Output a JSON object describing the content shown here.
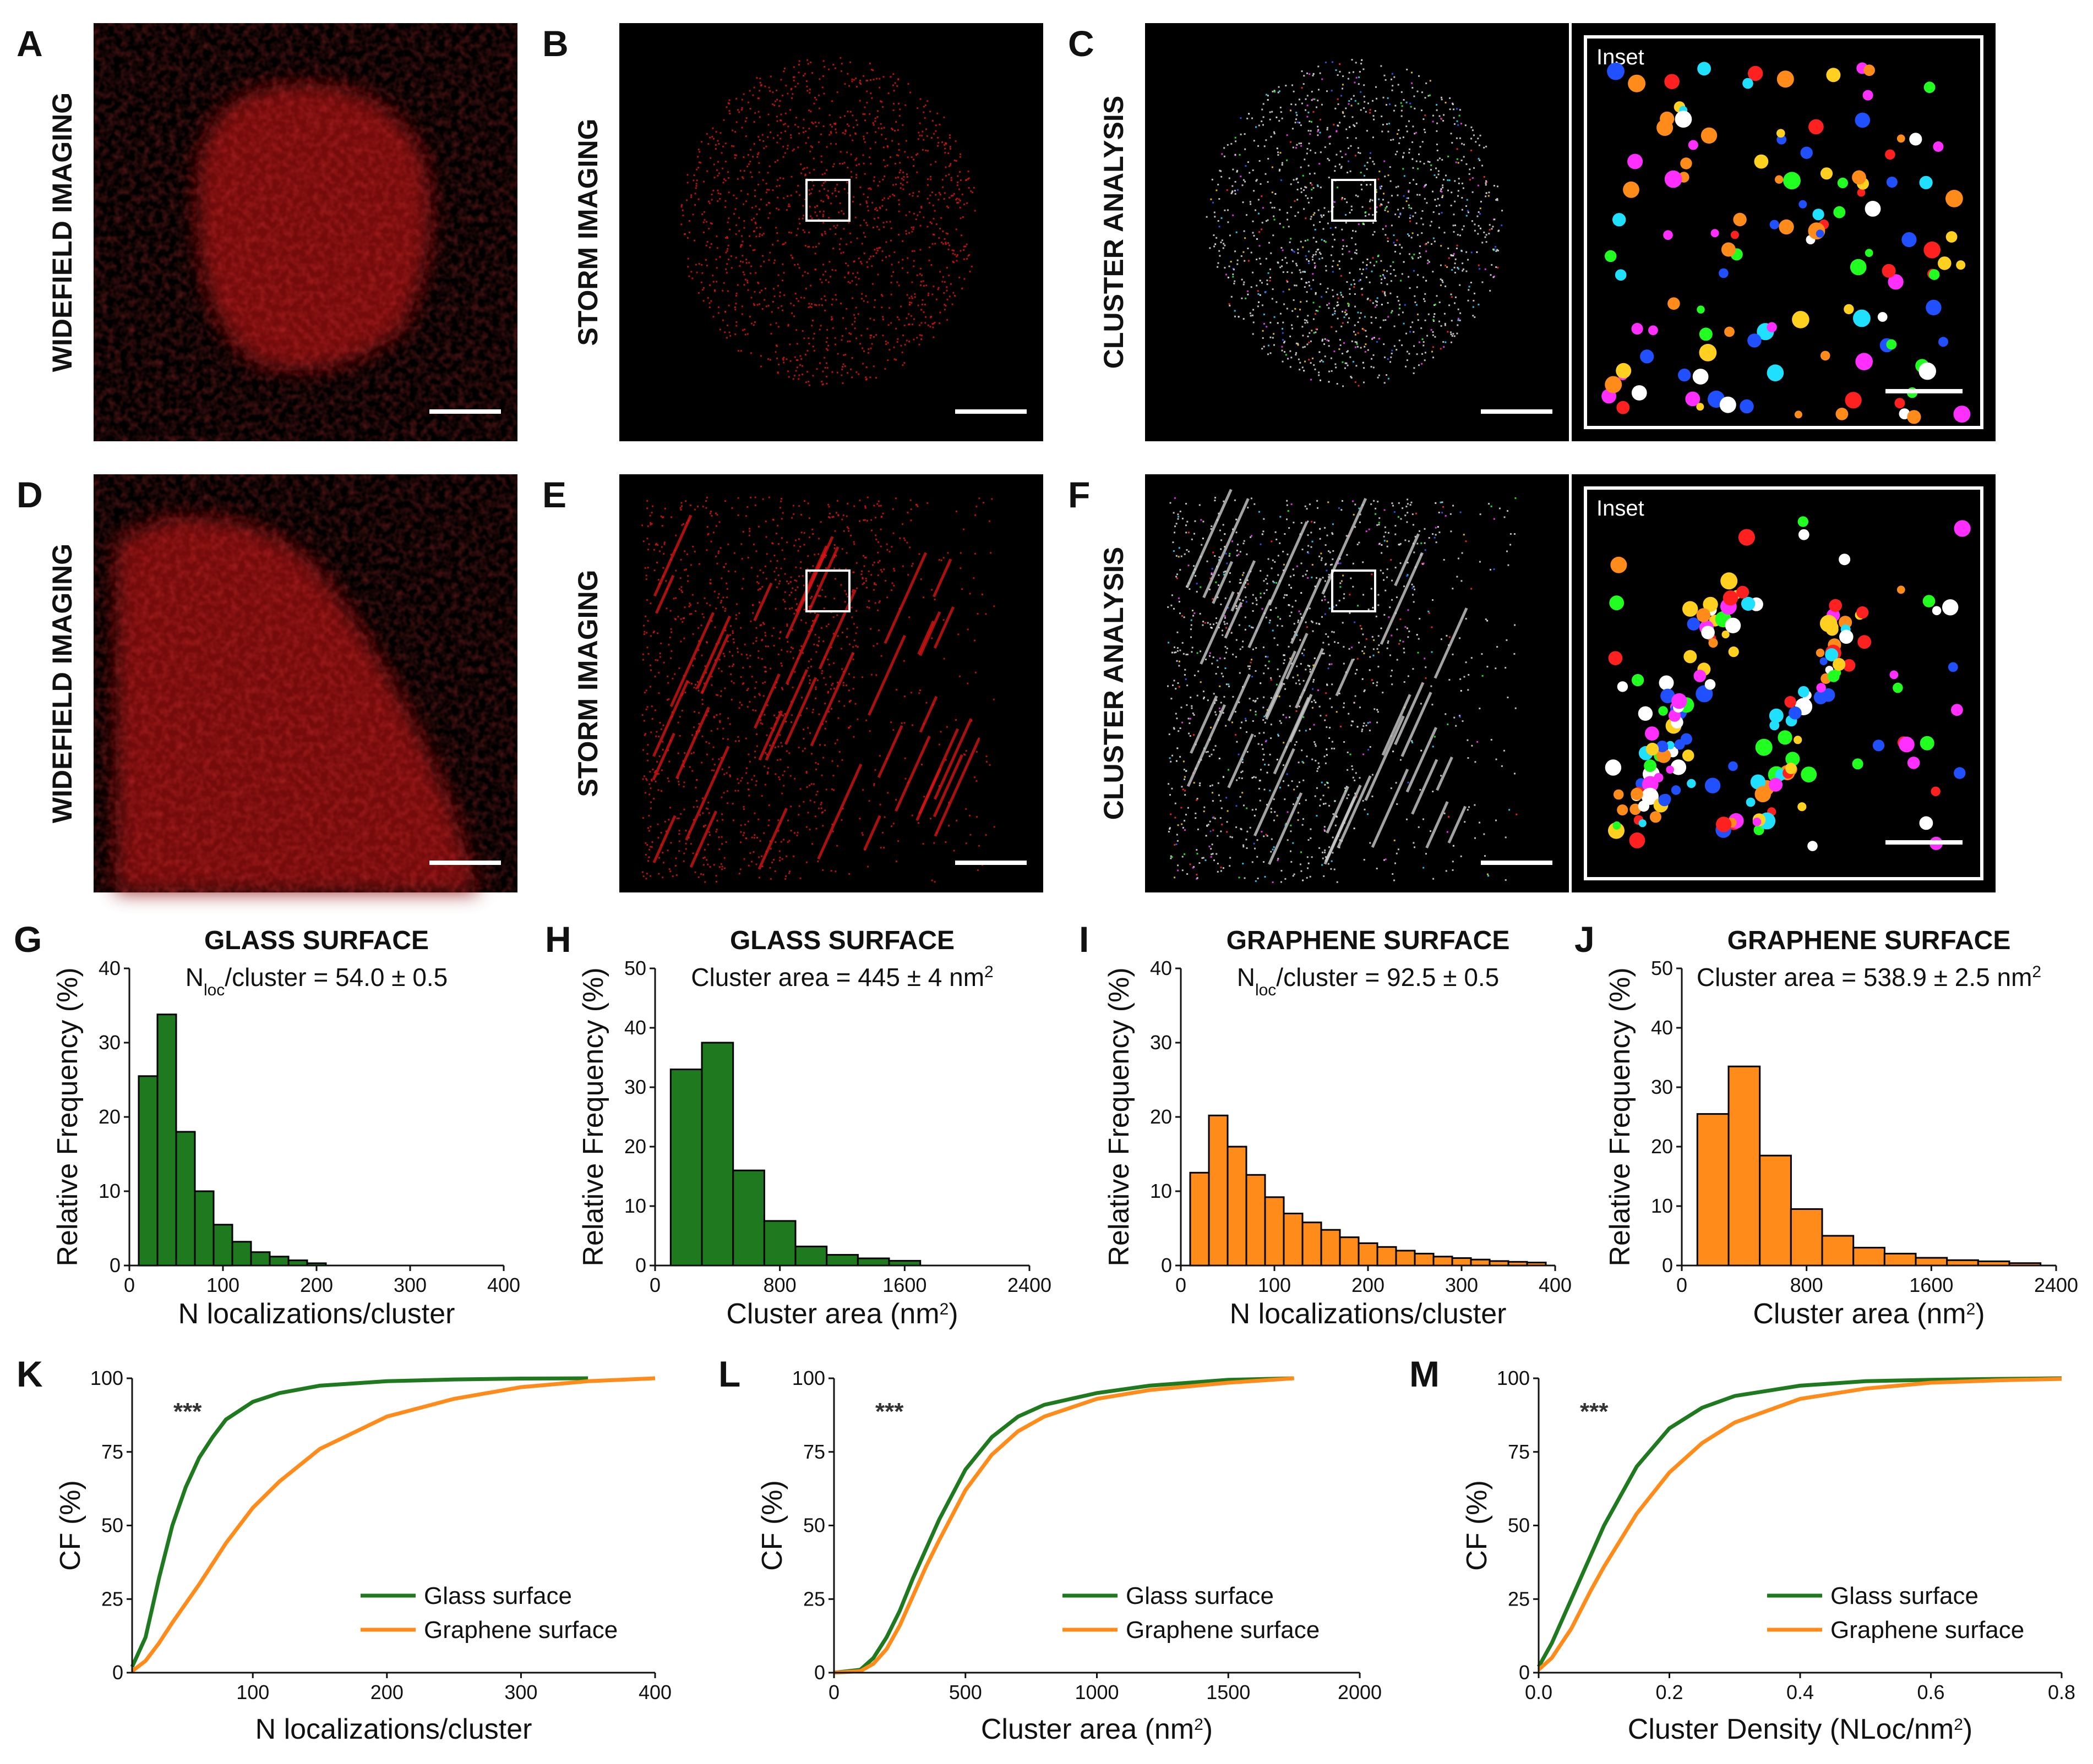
{
  "colors": {
    "glass": "#1f7a1f",
    "graphene": "#ff8c1a",
    "micro_red": "#d41414"
  },
  "panels": {
    "A": {
      "letter": "A",
      "title": "WIDEFIELD IMAGING",
      "type": "widefield"
    },
    "B": {
      "letter": "B",
      "title": "STORM IMAGING",
      "type": "storm"
    },
    "C": {
      "letter": "C",
      "title": "CLUSTER ANALYSIS",
      "type": "cluster",
      "inset_label": "Inset"
    },
    "D": {
      "letter": "D",
      "title": "WIDEFIELD IMAGING",
      "type": "widefield"
    },
    "E": {
      "letter": "E",
      "title": "STORM IMAGING",
      "type": "storm"
    },
    "F": {
      "letter": "F",
      "title": "CLUSTER ANALYSIS",
      "type": "cluster",
      "inset_label": "Inset"
    }
  },
  "chart_data": [
    {
      "id": "G",
      "type": "bar",
      "title": "GLASS SURFACE",
      "subtitle": "N",
      "subtitle_sub": "loc",
      "subtitle_rest": "/cluster = 54.0 ± 0.5",
      "xlabel": "N localizations/cluster",
      "ylabel": "Relative Frequency (%)",
      "bin_width": 20,
      "bin_start": 20,
      "values": [
        25.5,
        33.8,
        18,
        10,
        5.5,
        3.2,
        1.8,
        1.2,
        0.7,
        0.3
      ],
      "xlim": [
        0,
        400
      ],
      "ylim": [
        0,
        40
      ],
      "xticks": [
        "0",
        "100",
        "200",
        "300",
        "400"
      ],
      "yticks": [
        "0",
        "10",
        "20",
        "30",
        "40"
      ],
      "series_color": "glass"
    },
    {
      "id": "H",
      "type": "bar",
      "title": "GLASS SURFACE",
      "subtitle": "Cluster area = 445 ± 4 nm",
      "subtitle_sup": "2",
      "xlabel": "Cluster area (nm",
      "xlabel_sup": "2",
      "xlabel_end": ")",
      "ylabel": "Relative Frequency (%)",
      "bin_width": 200,
      "bin_start": 200,
      "values": [
        33,
        37.5,
        16,
        7.5,
        3.2,
        1.8,
        1.2,
        0.8
      ],
      "xlim": [
        0,
        2400
      ],
      "ylim": [
        0,
        50
      ],
      "xticks": [
        "0",
        "800",
        "1600",
        "2400"
      ],
      "yticks": [
        "0",
        "10",
        "20",
        "30",
        "40",
        "50"
      ],
      "series_color": "glass"
    },
    {
      "id": "I",
      "type": "bar",
      "title": "GRAPHENE SURFACE",
      "subtitle": "N",
      "subtitle_sub": "loc",
      "subtitle_rest": "/cluster = 92.5 ± 0.5",
      "xlabel": "N localizations/cluster",
      "ylabel": "Relative Frequency (%)",
      "bin_width": 20,
      "bin_start": 20,
      "values": [
        12.5,
        20.2,
        16,
        12.2,
        9.2,
        7,
        5.8,
        4.8,
        3.8,
        3,
        2.5,
        2,
        1.6,
        1.2,
        1,
        0.8,
        0.6,
        0.5,
        0.4
      ],
      "xlim": [
        0,
        400
      ],
      "ylim": [
        0,
        40
      ],
      "xticks": [
        "0",
        "100",
        "200",
        "300",
        "400"
      ],
      "yticks": [
        "0",
        "10",
        "20",
        "30",
        "40"
      ],
      "series_color": "graphene"
    },
    {
      "id": "J",
      "type": "bar",
      "title": "GRAPHENE SURFACE",
      "subtitle": "Cluster area = 538.9 ± 2.5 nm",
      "subtitle_sup": "2",
      "xlabel": "Cluster area (nm",
      "xlabel_sup": "2",
      "xlabel_end": ")",
      "ylabel": "Relative Frequency (%)",
      "bin_width": 200,
      "bin_start": 200,
      "values": [
        25.5,
        33.5,
        18.5,
        9.5,
        5,
        3,
        2,
        1.3,
        0.9,
        0.7,
        0.4
      ],
      "xlim": [
        0,
        2400
      ],
      "ylim": [
        0,
        50
      ],
      "xticks": [
        "0",
        "800",
        "1600",
        "2400"
      ],
      "yticks": [
        "0",
        "10",
        "20",
        "30",
        "40",
        "50"
      ],
      "series_color": "graphene"
    },
    {
      "id": "K",
      "type": "line",
      "annotation": "***",
      "xlabel": "N localizations/cluster",
      "ylabel": "CF (%)",
      "xlim": [
        10,
        400
      ],
      "ylim": [
        0,
        100
      ],
      "xticks": [
        "100",
        "200",
        "300",
        "400"
      ],
      "xtick_vals": [
        100,
        200,
        300,
        400
      ],
      "yticks": [
        "0",
        "25",
        "50",
        "75",
        "100"
      ],
      "series": [
        {
          "name": "Glass surface",
          "color": "glass",
          "x": [
            10,
            20,
            30,
            40,
            50,
            60,
            70,
            80,
            100,
            120,
            150,
            200,
            250,
            300,
            350
          ],
          "y": [
            2,
            12,
            32,
            50,
            63,
            73,
            80,
            86,
            92,
            95,
            97.5,
            99,
            99.6,
            99.9,
            100
          ]
        },
        {
          "name": "Graphene surface",
          "color": "graphene",
          "x": [
            10,
            20,
            30,
            40,
            60,
            80,
            100,
            120,
            150,
            200,
            250,
            300,
            350,
            400
          ],
          "y": [
            0.5,
            4,
            10,
            17,
            30,
            44,
            56,
            65,
            76,
            87,
            93,
            97,
            99,
            100
          ]
        }
      ]
    },
    {
      "id": "L",
      "type": "line",
      "annotation": "***",
      "xlabel": "Cluster area (nm",
      "xlabel_sup": "2",
      "xlabel_end": ")",
      "ylabel": "CF (%)",
      "xlim": [
        0,
        2000
      ],
      "ylim": [
        0,
        100
      ],
      "xticks": [
        "0",
        "500",
        "1000",
        "1500",
        "2000"
      ],
      "xtick_vals": [
        0,
        500,
        1000,
        1500,
        2000
      ],
      "yticks": [
        "0",
        "25",
        "50",
        "75",
        "100"
      ],
      "series": [
        {
          "name": "Glass surface",
          "color": "glass",
          "x": [
            0,
            100,
            150,
            200,
            250,
            300,
            350,
            400,
            500,
            600,
            700,
            800,
            1000,
            1200,
            1500,
            1750
          ],
          "y": [
            0,
            1,
            5,
            12,
            21,
            32,
            42,
            52,
            69,
            80,
            87,
            91,
            95,
            97.5,
            99.5,
            100
          ]
        },
        {
          "name": "Graphene surface",
          "color": "graphene",
          "x": [
            0,
            100,
            150,
            200,
            250,
            300,
            350,
            400,
            500,
            600,
            700,
            800,
            1000,
            1200,
            1500,
            1750
          ],
          "y": [
            0,
            0.5,
            3,
            8,
            16,
            26,
            36,
            45,
            62,
            74,
            82,
            87,
            93,
            96,
            98.5,
            100
          ]
        }
      ]
    },
    {
      "id": "M",
      "type": "line",
      "annotation": "***",
      "xlabel": "Cluster Density (NLoc/nm",
      "xlabel_sup": "2",
      "xlabel_end": ")",
      "ylabel": "CF (%)",
      "xlim": [
        0,
        0.8
      ],
      "ylim": [
        0,
        100
      ],
      "xticks": [
        "0.0",
        "0.2",
        "0.4",
        "0.6",
        "0.8"
      ],
      "xtick_vals": [
        0,
        0.2,
        0.4,
        0.6,
        0.8
      ],
      "yticks": [
        "0",
        "25",
        "50",
        "75",
        "100"
      ],
      "series": [
        {
          "name": "Glass surface",
          "color": "glass",
          "x": [
            0,
            0.02,
            0.05,
            0.08,
            0.1,
            0.15,
            0.2,
            0.25,
            0.3,
            0.4,
            0.5,
            0.6,
            0.7,
            0.8
          ],
          "y": [
            2,
            10,
            25,
            40,
            50,
            70,
            83,
            90,
            94,
            97.5,
            99,
            99.5,
            99.8,
            100
          ]
        },
        {
          "name": "Graphene surface",
          "color": "graphene",
          "x": [
            0,
            0.02,
            0.05,
            0.08,
            0.1,
            0.15,
            0.2,
            0.25,
            0.3,
            0.4,
            0.5,
            0.6,
            0.7,
            0.8
          ],
          "y": [
            1,
            5,
            15,
            28,
            36,
            54,
            68,
            78,
            85,
            93,
            96.5,
            98.5,
            99.3,
            99.8
          ]
        }
      ]
    }
  ]
}
